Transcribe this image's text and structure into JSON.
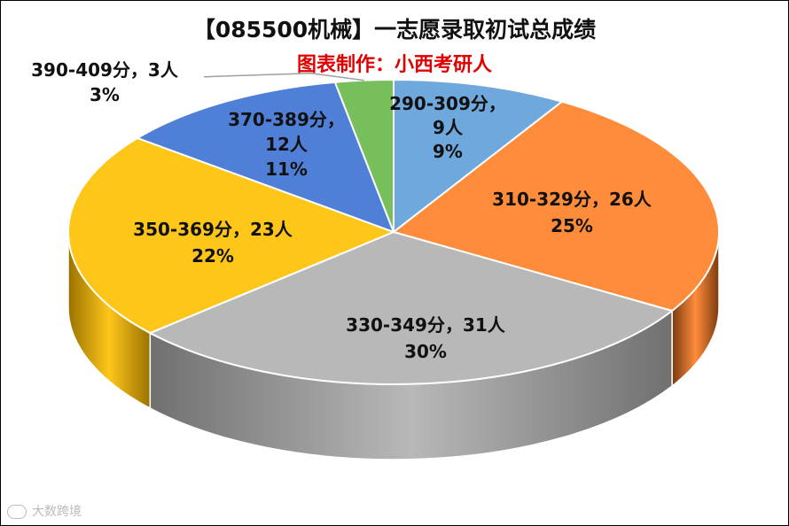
{
  "chart_data": {
    "type": "pie",
    "title": "【085500机械】一志愿录取初试总成绩",
    "subtitle": "图表制作：小西考研人",
    "slices": [
      {
        "name": "290-309分",
        "count": 9,
        "percent": 9,
        "count_text": "9人",
        "percent_text": "9%",
        "color": "#6fa8dc",
        "side_color": "#3d6fa0"
      },
      {
        "name": "310-329分",
        "count": 26,
        "percent": 25,
        "count_text": "26人",
        "percent_text": "25%",
        "color": "#ff8c3a",
        "side_color": "#7a3a10"
      },
      {
        "name": "330-349分",
        "count": 31,
        "percent": 30,
        "count_text": "31人",
        "percent_text": "30%",
        "color": "#b8b8b8",
        "side_color": "#707070"
      },
      {
        "name": "350-369分",
        "count": 23,
        "percent": 22,
        "count_text": "23人",
        "percent_text": "22%",
        "color": "#ffc61a",
        "side_color": "#9a7200"
      },
      {
        "name": "370-389分",
        "count": 12,
        "percent": 11,
        "count_text": "12人",
        "percent_text": "11%",
        "color": "#4f7fd6",
        "side_color": "#2d4f90"
      },
      {
        "name": "390-409分",
        "count": 3,
        "percent": 3,
        "count_text": "3人",
        "percent_text": "3%",
        "color": "#77bf5a",
        "side_color": "#4a8a35"
      }
    ],
    "label_sep": "，"
  },
  "colors": {
    "subtitle": "#e00000",
    "leader_line": "#a0a0a0"
  },
  "watermark": {
    "text": "大数跨境",
    "icon": "bubble-logo-icon"
  }
}
